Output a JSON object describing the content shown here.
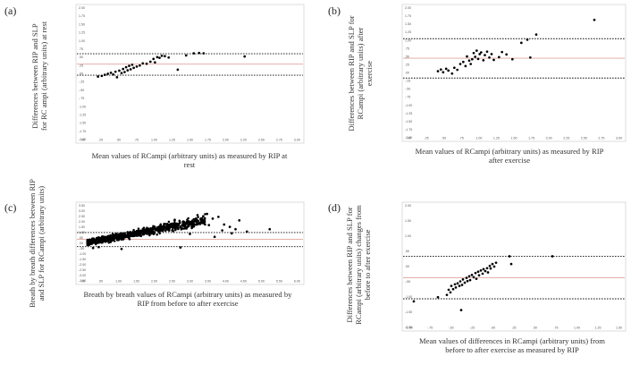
{
  "chart_data": [
    {
      "type": "scatter",
      "panel_label": "(a)",
      "ylabel_lines": [
        "Differences between RIP and SLP",
        "for RC ampi (arbitrary units) at rest"
      ],
      "xlabel_lines": [
        "Mean values of RCampi (arbitrary units) as measured by RIP at",
        "rest"
      ],
      "xticks": [
        ".00",
        ".25",
        ".50",
        ".75",
        "1.00",
        "1.25",
        "1.50",
        "1.75",
        "2.00",
        "2.25",
        "2.50",
        "2.75",
        "3.00"
      ],
      "yticks": [
        "2.00",
        "1.75",
        "1.50",
        "1.25",
        "1.00",
        ".75",
        ".50",
        ".25",
        ".00",
        "-.25",
        "-.50",
        "-.75",
        "-1.00",
        "-1.25",
        "-1.50",
        "-1.75",
        "-2.00"
      ],
      "xlim": [
        0,
        3
      ],
      "ylim": [
        -2,
        2
      ],
      "lines": {
        "mean": 0.28,
        "upper": 0.58,
        "lower": -0.04
      },
      "points": [
        [
          0.29,
          -0.08
        ],
        [
          0.34,
          -0.06
        ],
        [
          0.38,
          -0.03
        ],
        [
          0.42,
          0.0
        ],
        [
          0.46,
          0.03
        ],
        [
          0.49,
          -0.02
        ],
        [
          0.52,
          0.06
        ],
        [
          0.54,
          -0.1
        ],
        [
          0.57,
          0.09
        ],
        [
          0.6,
          0.02
        ],
        [
          0.62,
          0.14
        ],
        [
          0.64,
          0.05
        ],
        [
          0.66,
          0.19
        ],
        [
          0.68,
          0.1
        ],
        [
          0.7,
          0.23
        ],
        [
          0.72,
          0.13
        ],
        [
          0.74,
          0.26
        ],
        [
          0.76,
          0.17
        ],
        [
          0.8,
          0.21
        ],
        [
          0.84,
          0.24
        ],
        [
          0.88,
          0.3
        ],
        [
          0.93,
          0.29
        ],
        [
          0.98,
          0.35
        ],
        [
          1.02,
          0.43
        ],
        [
          1.04,
          0.33
        ],
        [
          1.07,
          0.48
        ],
        [
          1.1,
          0.46
        ],
        [
          1.13,
          0.52
        ],
        [
          1.17,
          0.51
        ],
        [
          1.22,
          0.47
        ],
        [
          1.34,
          0.12
        ],
        [
          1.45,
          0.53
        ],
        [
          1.55,
          0.59
        ],
        [
          1.62,
          0.6
        ],
        [
          1.68,
          0.59
        ],
        [
          2.22,
          0.5
        ]
      ]
    },
    {
      "type": "scatter",
      "panel_label": "(b)",
      "ylabel_lines": [
        "Differences between RIP and SLP for",
        "RCampi (arbitrary units) after",
        "exercise"
      ],
      "xlabel_lines": [
        "Mean values of RCampi (arbitrary units) as measured by RIP",
        "after exercise"
      ],
      "xticks": [
        ".00",
        ".25",
        ".50",
        ".75",
        "1.00",
        "1.25",
        "1.50",
        "1.75",
        "2.00",
        "2.25",
        "2.50",
        "2.75",
        "3.00"
      ],
      "yticks": [
        "2.00",
        "1.75",
        "1.50",
        "1.25",
        "1.00",
        ".75",
        ".50",
        ".25",
        ".00",
        "-.25",
        "-.50",
        "-.75",
        "-1.00",
        "-1.25",
        "-1.50",
        "-1.75",
        "-2.00"
      ],
      "xlim": [
        0,
        3
      ],
      "ylim": [
        -2,
        2
      ],
      "lines": {
        "mean": 0.43,
        "upper": 1.0,
        "lower": -0.15
      },
      "points": [
        [
          0.48,
          0.05
        ],
        [
          0.52,
          0.1
        ],
        [
          0.55,
          0.02
        ],
        [
          0.59,
          0.12
        ],
        [
          0.62,
          0.07
        ],
        [
          0.67,
          -0.02
        ],
        [
          0.7,
          0.15
        ],
        [
          0.74,
          0.09
        ],
        [
          0.78,
          0.26
        ],
        [
          0.82,
          0.32
        ],
        [
          0.85,
          0.2
        ],
        [
          0.87,
          0.48
        ],
        [
          0.9,
          0.36
        ],
        [
          0.92,
          0.26
        ],
        [
          0.94,
          0.4
        ],
        [
          0.96,
          0.58
        ],
        [
          0.98,
          0.47
        ],
        [
          1.0,
          0.65
        ],
        [
          1.02,
          0.41
        ],
        [
          1.04,
          0.55
        ],
        [
          1.06,
          0.6
        ],
        [
          1.09,
          0.37
        ],
        [
          1.11,
          0.52
        ],
        [
          1.14,
          0.62
        ],
        [
          1.17,
          0.45
        ],
        [
          1.2,
          0.55
        ],
        [
          1.23,
          0.38
        ],
        [
          1.3,
          0.46
        ],
        [
          1.34,
          0.61
        ],
        [
          1.4,
          0.54
        ],
        [
          1.48,
          0.4
        ],
        [
          1.6,
          0.88
        ],
        [
          1.68,
          0.97
        ],
        [
          1.72,
          0.45
        ],
        [
          1.8,
          1.12
        ],
        [
          2.58,
          1.55
        ]
      ]
    },
    {
      "type": "scatter",
      "panel_label": "(c)",
      "ylabel_lines": [
        "Breath by breath differences between RIP",
        "and SLP for RCampi (arbitrary units)"
      ],
      "xlabel_lines": [
        "Breath by breath values of RCampi (arbitrary units) as measured by",
        "RIP from before to after exercise"
      ],
      "xticks": [
        ".00",
        ".50",
        "1.00",
        "1.50",
        "2.00",
        "2.50",
        "3.00",
        "3.50",
        "4.00",
        "4.50",
        "5.00",
        "5.50",
        "6.00"
      ],
      "yticks": [
        "3.50",
        "3.00",
        "2.50",
        "2.00",
        "1.50",
        "1.00",
        ".50",
        ".00",
        "-.50",
        "-1.00",
        "-1.50",
        "-2.00",
        "-2.50",
        "-3.00",
        "-3.50"
      ],
      "xlim": [
        0,
        6
      ],
      "ylim": [
        -3.5,
        3.5
      ],
      "lines": {
        "mean": 0.35,
        "upper": 0.92,
        "lower": -0.28
      },
      "dense_band": {
        "n": 950,
        "x_range": [
          0.3,
          3.4
        ],
        "intercept": -0.1,
        "slope": 0.6,
        "spread": 0.35
      },
      "points": [
        [
          3.2,
          2.4
        ],
        [
          3.35,
          2.3
        ],
        [
          3.45,
          2.5
        ],
        [
          3.6,
          2.1
        ],
        [
          3.75,
          2.25
        ],
        [
          3.9,
          1.6
        ],
        [
          4.05,
          1.4
        ],
        [
          4.2,
          1.2
        ],
        [
          4.5,
          1.0
        ],
        [
          4.3,
          1.95
        ],
        [
          5.1,
          1.2
        ],
        [
          3.3,
          1.75
        ],
        [
          3.5,
          1.55
        ],
        [
          2.9,
          1.65
        ],
        [
          3.0,
          0.8
        ],
        [
          2.6,
          2.0
        ],
        [
          3.85,
          1.1
        ],
        [
          3.65,
          0.55
        ],
        [
          4.1,
          0.85
        ],
        [
          2.75,
          -0.35
        ],
        [
          0.6,
          -0.32
        ],
        [
          0.45,
          -0.4
        ],
        [
          1.2,
          -0.48
        ]
      ]
    },
    {
      "type": "scatter",
      "panel_label": "(d)",
      "ylabel_lines": [
        "Differences between RIP and SLP for",
        "RCampi (arbitrary units) changes from",
        "before to after exercise"
      ],
      "xlabel_lines": [
        "Mean values of differences in RCampi (arbitrary units) from",
        "before to after exercise as measured by RIP"
      ],
      "xticks": [
        "-1.00",
        "-.75",
        "-.50",
        "-.25",
        ".00",
        ".25",
        ".50",
        ".75",
        "1.00",
        "1.25",
        "1.50"
      ],
      "yticks": [
        "2.00",
        "1.50",
        "1.00",
        ".50",
        ".00",
        "-.50",
        "-1.00",
        "-1.50",
        "-2.00"
      ],
      "xlim": [
        -1,
        1.5
      ],
      "ylim": [
        -2,
        2
      ],
      "lines": {
        "mean": -0.35,
        "upper": 0.32,
        "lower": -1.0
      },
      "points": [
        [
          -0.5,
          -0.88
        ],
        [
          -0.48,
          -0.72
        ],
        [
          -0.46,
          -0.8
        ],
        [
          -0.45,
          -0.6
        ],
        [
          -0.43,
          -0.7
        ],
        [
          -0.41,
          -0.55
        ],
        [
          -0.4,
          -0.65
        ],
        [
          -0.38,
          -0.52
        ],
        [
          -0.36,
          -0.6
        ],
        [
          -0.35,
          -0.46
        ],
        [
          -0.33,
          -0.57
        ],
        [
          -0.32,
          -0.4
        ],
        [
          -0.3,
          -0.5
        ],
        [
          -0.28,
          -0.35
        ],
        [
          -0.27,
          -0.45
        ],
        [
          -0.25,
          -0.3
        ],
        [
          -0.24,
          -0.42
        ],
        [
          -0.22,
          -0.26
        ],
        [
          -0.2,
          -0.33
        ],
        [
          -0.18,
          -0.2
        ],
        [
          -0.17,
          -0.38
        ],
        [
          -0.15,
          -0.16
        ],
        [
          -0.14,
          -0.27
        ],
        [
          -0.12,
          -0.12
        ],
        [
          -0.1,
          -0.22
        ],
        [
          -0.09,
          -0.08
        ],
        [
          -0.07,
          -0.14
        ],
        [
          -0.05,
          -0.05
        ],
        [
          -0.04,
          -0.18
        ],
        [
          -0.02,
          0.02
        ],
        [
          -0.01,
          -0.06
        ],
        [
          0.01,
          0.08
        ],
        [
          0.03,
          0.0
        ],
        [
          0.05,
          0.12
        ],
        [
          0.22,
          0.08
        ],
        [
          0.2,
          0.32
        ],
        [
          0.68,
          0.32
        ],
        [
          -0.87,
          -1.08
        ],
        [
          -0.34,
          -1.35
        ],
        [
          -0.6,
          -0.95
        ]
      ]
    }
  ]
}
